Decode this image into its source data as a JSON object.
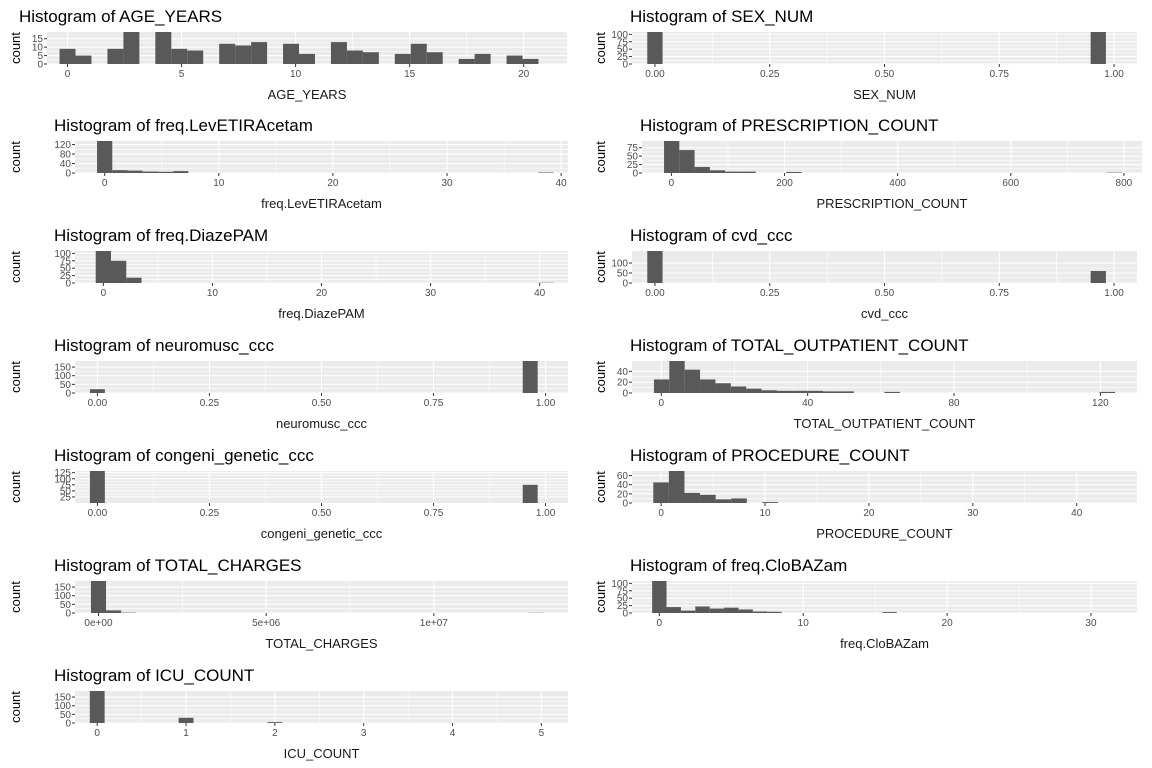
{
  "chart_data": [
    {
      "type": "bar",
      "title": "Histogram of AGE_YEARS",
      "xlabel": "AGE_YEARS",
      "ylabel": "count",
      "xlim": [
        -0.9,
        21.9
      ],
      "ylim": [
        0,
        19
      ],
      "x_ticks": [
        0,
        5,
        10,
        15,
        20
      ],
      "x_tick_labels": [
        "0",
        "5",
        "10",
        "15",
        "20"
      ],
      "y_ticks": [
        0,
        5,
        10,
        15
      ],
      "y_tick_labels": [
        "0",
        "5",
        "10",
        "15"
      ],
      "bins": {
        "start": -0.35,
        "width": 0.7,
        "counts": [
          9,
          5,
          0,
          9,
          19,
          0,
          19,
          9,
          8,
          0,
          12,
          11,
          13,
          0,
          12,
          6,
          0,
          13,
          8,
          7,
          0,
          6,
          12,
          7,
          0,
          3,
          6,
          0,
          5,
          3
        ]
      }
    },
    {
      "type": "bar",
      "title": "Histogram of SEX_NUM",
      "xlabel": "SEX_NUM",
      "ylabel": "count",
      "xlim": [
        -0.05,
        1.05
      ],
      "ylim": [
        0,
        108
      ],
      "x_ticks": [
        0,
        0.25,
        0.5,
        0.75,
        1
      ],
      "x_tick_labels": [
        "0.00",
        "0.25",
        "0.50",
        "0.75",
        "1.00"
      ],
      "y_ticks": [
        0,
        25,
        50,
        75,
        100
      ],
      "y_tick_labels": [
        "0",
        "25",
        "50",
        "75",
        "100"
      ],
      "bins": {
        "start": -0.0167,
        "width": 0.0333,
        "counts": [
          108,
          0,
          0,
          0,
          0,
          0,
          0,
          0,
          0,
          0,
          0,
          0,
          0,
          0,
          0,
          0,
          0,
          0,
          0,
          0,
          0,
          0,
          0,
          0,
          0,
          0,
          0,
          0,
          0,
          108
        ]
      }
    },
    {
      "type": "bar",
      "title": "Histogram of freq.LevETIRAcetam",
      "xlabel": "freq.LevETIRAcetam",
      "ylabel": "count",
      "xlim": [
        -2.6,
        40.6
      ],
      "ylim": [
        0,
        135
      ],
      "x_ticks": [
        0,
        10,
        20,
        30,
        40
      ],
      "x_tick_labels": [
        "0",
        "10",
        "20",
        "30",
        "40"
      ],
      "y_ticks": [
        0,
        40,
        80,
        120
      ],
      "y_tick_labels": [
        "0",
        "40",
        "80",
        "120"
      ],
      "bins": {
        "start": -0.6667,
        "width": 1.3333,
        "counts": [
          135,
          12,
          10,
          6,
          5,
          8,
          0,
          0,
          0,
          0,
          0,
          0,
          0,
          0,
          0,
          0,
          0,
          0,
          0,
          0,
          0,
          0,
          0,
          0,
          0,
          0,
          0,
          0,
          0,
          2
        ]
      }
    },
    {
      "type": "bar",
      "title": "Histogram of PRESCRIPTION_COUNT",
      "xlabel": "PRESCRIPTION_COUNT",
      "ylabel": "count",
      "xlim": [
        -52,
        832
      ],
      "ylim": [
        0,
        95
      ],
      "x_ticks": [
        0,
        200,
        400,
        600,
        800
      ],
      "x_tick_labels": [
        "0",
        "200",
        "400",
        "600",
        "800"
      ],
      "y_ticks": [
        0,
        25,
        50,
        75
      ],
      "y_tick_labels": [
        "0",
        "25",
        "50",
        "75"
      ],
      "bins": {
        "start": -13,
        "width": 27,
        "counts": [
          95,
          68,
          18,
          8,
          4,
          4,
          0,
          0,
          3,
          0,
          0,
          0,
          0,
          0,
          0,
          0,
          0,
          0,
          0,
          0,
          0,
          0,
          0,
          0,
          0,
          0,
          0,
          0,
          0,
          1
        ]
      }
    },
    {
      "type": "bar",
      "title": "Histogram of freq.DiazePAM",
      "xlabel": "freq.DiazePAM",
      "ylabel": "count",
      "xlim": [
        -2.6,
        42.6
      ],
      "ylim": [
        0,
        108
      ],
      "x_ticks": [
        0,
        10,
        20,
        30,
        40
      ],
      "x_tick_labels": [
        "0",
        "10",
        "20",
        "30",
        "40"
      ],
      "y_ticks": [
        0,
        25,
        50,
        75,
        100
      ],
      "y_tick_labels": [
        "0",
        "25",
        "50",
        "75",
        "100"
      ],
      "bins": {
        "start": -0.7,
        "width": 1.4,
        "counts": [
          108,
          75,
          18,
          0,
          0,
          0,
          0,
          0,
          0,
          0,
          0,
          0,
          0,
          0,
          0,
          0,
          0,
          0,
          0,
          0,
          0,
          0,
          0,
          0,
          0,
          0,
          0,
          0,
          0,
          1
        ]
      }
    },
    {
      "type": "bar",
      "title": "Histogram of cvd_ccc",
      "xlabel": "cvd_ccc",
      "ylabel": "count",
      "xlim": [
        -0.05,
        1.05
      ],
      "ylim": [
        0,
        160
      ],
      "x_ticks": [
        0,
        0.25,
        0.5,
        0.75,
        1
      ],
      "x_tick_labels": [
        "0.00",
        "0.25",
        "0.50",
        "0.75",
        "1.00"
      ],
      "y_ticks": [
        0,
        50,
        100
      ],
      "y_tick_labels": [
        "0",
        "50",
        "100"
      ],
      "bins": {
        "start": -0.0167,
        "width": 0.0333,
        "counts": [
          160,
          0,
          0,
          0,
          0,
          0,
          0,
          0,
          0,
          0,
          0,
          0,
          0,
          0,
          0,
          0,
          0,
          0,
          0,
          0,
          0,
          0,
          0,
          0,
          0,
          0,
          0,
          0,
          0,
          60
        ]
      }
    },
    {
      "type": "bar",
      "title": "Histogram of neuromusc_ccc",
      "xlabel": "neuromusc_ccc",
      "ylabel": "count",
      "xlim": [
        -0.05,
        1.05
      ],
      "ylim": [
        0,
        185
      ],
      "x_ticks": [
        0,
        0.25,
        0.5,
        0.75,
        1
      ],
      "x_tick_labels": [
        "0.00",
        "0.25",
        "0.50",
        "0.75",
        "1.00"
      ],
      "y_ticks": [
        0,
        50,
        100,
        150
      ],
      "y_tick_labels": [
        "0",
        "50",
        "100",
        "150"
      ],
      "bins": {
        "start": -0.0167,
        "width": 0.0333,
        "counts": [
          22,
          0,
          0,
          0,
          0,
          0,
          0,
          0,
          0,
          0,
          0,
          0,
          0,
          0,
          0,
          0,
          0,
          0,
          0,
          0,
          0,
          0,
          0,
          0,
          0,
          0,
          0,
          0,
          0,
          185
        ]
      }
    },
    {
      "type": "bar",
      "title": "Histogram of TOTAL_OUTPATIENT_COUNT",
      "xlabel": "TOTAL_OUTPATIENT_COUNT",
      "ylabel": "count",
      "xlim": [
        -8,
        130
      ],
      "ylim": [
        0,
        59
      ],
      "x_ticks": [
        0,
        40,
        80,
        120
      ],
      "x_tick_labels": [
        "0",
        "40",
        "80",
        "120"
      ],
      "y_ticks": [
        0,
        20,
        40
      ],
      "y_tick_labels": [
        "0",
        "20",
        "40"
      ],
      "bins": {
        "start": -2,
        "width": 4.2,
        "counts": [
          25,
          59,
          43,
          25,
          18,
          12,
          8,
          5,
          4,
          4,
          4,
          3,
          3,
          0,
          0,
          2,
          0,
          0,
          0,
          0,
          0,
          0,
          0,
          0,
          0,
          0,
          0,
          0,
          0,
          2
        ]
      }
    },
    {
      "type": "bar",
      "title": "Histogram of congeni_genetic_ccc",
      "xlabel": "congeni_genetic_ccc",
      "ylabel": "count",
      "xlim": [
        -0.05,
        1.05
      ],
      "ylim": [
        0,
        132
      ],
      "x_ticks": [
        0,
        0.25,
        0.5,
        0.75,
        1
      ],
      "x_tick_labels": [
        "0.00",
        "0.25",
        "0.50",
        "0.75",
        "1.00"
      ],
      "y_ticks": [
        25,
        50,
        75,
        100,
        125
      ],
      "y_tick_labels": [
        "25",
        "50",
        "75",
        "100",
        "125"
      ],
      "bins": {
        "start": -0.0167,
        "width": 0.0333,
        "counts": [
          132,
          0,
          0,
          0,
          0,
          0,
          0,
          0,
          0,
          0,
          0,
          0,
          0,
          0,
          0,
          0,
          0,
          0,
          0,
          0,
          0,
          0,
          0,
          0,
          0,
          0,
          0,
          0,
          0,
          75
        ]
      }
    },
    {
      "type": "bar",
      "title": "Histogram of PROCEDURE_COUNT",
      "xlabel": "PROCEDURE_COUNT",
      "ylabel": "count",
      "xlim": [
        -2.8,
        45.8
      ],
      "ylim": [
        0,
        70
      ],
      "x_ticks": [
        0,
        10,
        20,
        30,
        40
      ],
      "x_tick_labels": [
        "0",
        "10",
        "20",
        "30",
        "40"
      ],
      "y_ticks": [
        0,
        20,
        40,
        60
      ],
      "y_tick_labels": [
        "0",
        "20",
        "40",
        "60"
      ],
      "bins": {
        "start": -0.75,
        "width": 1.5,
        "counts": [
          45,
          70,
          22,
          18,
          8,
          10,
          0,
          2,
          0,
          0,
          0,
          0,
          0,
          0,
          0,
          0,
          0,
          0,
          0,
          0,
          0,
          0,
          0,
          0,
          0,
          0,
          0,
          0,
          0,
          0
        ]
      }
    },
    {
      "type": "bar",
      "title": "Histogram of TOTAL_CHARGES",
      "xlabel": "TOTAL_CHARGES",
      "ylabel": "count",
      "xlim": [
        -700000,
        14000000
      ],
      "ylim": [
        0,
        185
      ],
      "x_ticks": [
        0,
        5000000,
        10000000
      ],
      "x_tick_labels": [
        "0e+00",
        "5e+06",
        "1e+07"
      ],
      "y_ticks": [
        0,
        50,
        100,
        150
      ],
      "y_tick_labels": [
        "0",
        "50",
        "100",
        "150"
      ],
      "bins": {
        "start": -225000,
        "width": 450000,
        "counts": [
          185,
          15,
          2,
          0,
          0,
          0,
          0,
          0,
          0,
          0,
          0,
          0,
          0,
          0,
          0,
          0,
          0,
          0,
          0,
          0,
          0,
          0,
          0,
          0,
          0,
          0,
          0,
          0,
          0,
          1
        ]
      }
    },
    {
      "type": "bar",
      "title": "Histogram of freq.CloBAZam",
      "xlabel": "freq.CloBAZam",
      "ylabel": "count",
      "xlim": [
        -1.9,
        33.2
      ],
      "ylim": [
        0,
        108
      ],
      "x_ticks": [
        0,
        10,
        20,
        30
      ],
      "x_tick_labels": [
        "0",
        "10",
        "20",
        "30"
      ],
      "y_ticks": [
        0,
        25,
        50,
        75,
        100
      ],
      "y_tick_labels": [
        "0",
        "25",
        "50",
        "75",
        "100"
      ],
      "bins": {
        "start": -0.5,
        "width": 1.0,
        "counts": [
          108,
          20,
          8,
          22,
          15,
          18,
          12,
          5,
          4,
          0,
          0,
          0,
          0,
          0,
          0,
          0,
          3,
          0,
          0,
          0,
          0,
          0,
          0,
          0,
          0,
          0,
          0,
          0,
          0,
          0
        ]
      }
    },
    {
      "type": "bar",
      "title": "Histogram of ICU_COUNT",
      "xlabel": "ICU_COUNT",
      "ylabel": "count",
      "xlim": [
        -0.25,
        5.3
      ],
      "ylim": [
        0,
        185
      ],
      "x_ticks": [
        0,
        1,
        2,
        3,
        4,
        5
      ],
      "x_tick_labels": [
        "0",
        "1",
        "2",
        "3",
        "4",
        "5"
      ],
      "y_ticks": [
        0,
        50,
        100,
        150
      ],
      "y_tick_labels": [
        "0",
        "50",
        "100",
        "150"
      ],
      "bins": {
        "start": -0.0833,
        "width": 0.1667,
        "counts": [
          185,
          0,
          0,
          0,
          0,
          0,
          30,
          0,
          0,
          0,
          0,
          0,
          5,
          0,
          0,
          0,
          0,
          0,
          0,
          0,
          0,
          0,
          0,
          0,
          0,
          0,
          0,
          0,
          0,
          0
        ]
      }
    }
  ],
  "colors": {
    "panel_bg": "#ebebeb",
    "grid": "#ffffff",
    "bar": "#595959",
    "tick_text": "#4d4d4d"
  }
}
